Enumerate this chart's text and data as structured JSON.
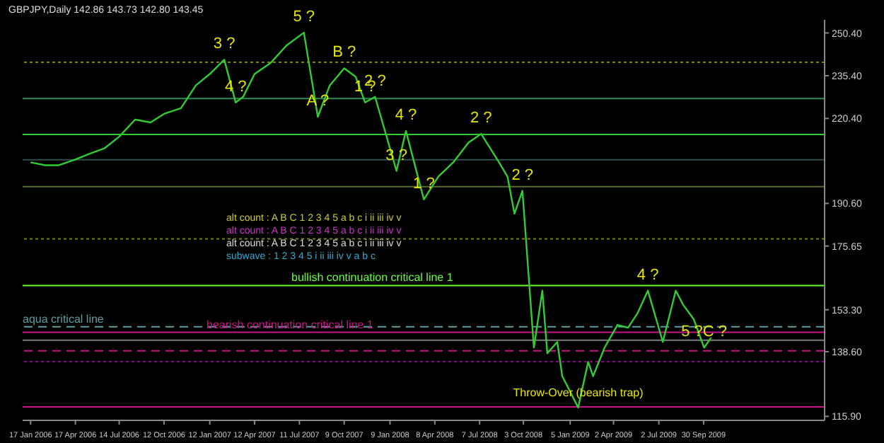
{
  "chart_data": {
    "type": "line",
    "title": "GBPJPY,Daily 142.86 143.73 142.80 143.45",
    "x": [
      "2006-01-17",
      "2006-02-15",
      "2006-03-15",
      "2006-04-17",
      "2006-05-15",
      "2006-06-15",
      "2006-07-14",
      "2006-08-15",
      "2006-09-15",
      "2006-10-12",
      "2006-11-15",
      "2006-12-15",
      "2007-01-12",
      "2007-02-10",
      "2007-03-05",
      "2007-03-20",
      "2007-04-12",
      "2007-05-15",
      "2007-06-15",
      "2007-07-20",
      "2007-08-17",
      "2007-09-10",
      "2007-10-09",
      "2007-11-01",
      "2007-11-20",
      "2007-12-10",
      "2008-01-22",
      "2008-02-10",
      "2008-03-17",
      "2008-04-15",
      "2008-05-15",
      "2008-06-15",
      "2008-07-10",
      "2008-08-15",
      "2008-09-01",
      "2008-09-15",
      "2008-10-01",
      "2008-10-24",
      "2008-11-10",
      "2008-11-20",
      "2008-12-10",
      "2008-12-20",
      "2009-01-21",
      "2009-02-10",
      "2009-02-20",
      "2009-03-15",
      "2009-04-10",
      "2009-05-01",
      "2009-05-20",
      "2009-06-10",
      "2009-07-10",
      "2009-08-05",
      "2009-08-20",
      "2009-09-10",
      "2009-10-01",
      "2009-10-15"
    ],
    "series": [
      {
        "color": "#33cc33",
        "values": [
          205,
          204,
          204,
          206,
          208,
          210,
          214,
          220,
          219,
          222,
          224,
          232,
          236,
          241,
          226,
          228,
          236,
          240,
          246,
          250.5,
          221,
          232,
          238,
          235,
          226,
          228,
          202,
          216,
          192,
          200,
          205,
          212,
          215,
          205,
          200,
          187,
          195,
          140,
          160,
          138,
          142,
          130,
          119,
          135,
          130,
          140,
          148,
          147,
          152,
          160,
          142,
          160,
          155,
          150,
          140,
          143.5
        ]
      }
    ],
    "xlim": [
      "2006-01-01",
      "2010-05-31"
    ],
    "xticks": [
      {
        "value": "2006-01-17",
        "label": "17 Jan 2006"
      },
      {
        "value": "2006-04-17",
        "label": "17 Apr 2006"
      },
      {
        "value": "2006-07-14",
        "label": "14 Jul 2006"
      },
      {
        "value": "2006-10-12",
        "label": "12 Oct 2006"
      },
      {
        "value": "2007-01-12",
        "label": "12 Jan 2007"
      },
      {
        "value": "2007-04-12",
        "label": "12 Apr 2007"
      },
      {
        "value": "2007-07-11",
        "label": "11 Jul 2007"
      },
      {
        "value": "2007-10-09",
        "label": "9 Oct 2007"
      },
      {
        "value": "2008-01-09",
        "label": "9 Jan 2008"
      },
      {
        "value": "2008-04-08",
        "label": "8 Apr 2008"
      },
      {
        "value": "2008-07-07",
        "label": "7 Jul 2008"
      },
      {
        "value": "2008-10-03",
        "label": "3 Oct 2008"
      },
      {
        "value": "2009-01-05",
        "label": "5 Jan 2009"
      },
      {
        "value": "2009-04-02",
        "label": "2 Apr 2009"
      },
      {
        "value": "2009-07-02",
        "label": "2 Jul 2009"
      },
      {
        "value": "2009-09-30",
        "label": "30 Sep 2009"
      }
    ],
    "ylim": [
      114.5,
      255
    ],
    "yticks": [
      {
        "value": 250.4,
        "label": "250.40"
      },
      {
        "value": 235.4,
        "label": "235.40"
      },
      {
        "value": 220.4,
        "label": "220.40"
      },
      {
        "value": 190.6,
        "label": "190.60"
      },
      {
        "value": 175.65,
        "label": "175.65"
      },
      {
        "value": 153.3,
        "label": "153.30"
      },
      {
        "value": 138.6,
        "label": "138.60"
      },
      {
        "value": 115.9,
        "label": "115.90"
      }
    ],
    "ref_lines": [
      {
        "axis": "y",
        "value": 240.1,
        "color": "#808000",
        "line_style": "dotted"
      },
      {
        "axis": "y",
        "value": 227.4,
        "color": "#2e8b57"
      },
      {
        "axis": "y",
        "value": 214.8,
        "color": "#32cd32"
      },
      {
        "axis": "y",
        "value": 205.9,
        "color": "#2f4f4f"
      },
      {
        "axis": "y",
        "value": 196.5,
        "color": "#556b2f"
      },
      {
        "axis": "y",
        "value": 178.2,
        "color": "#808000",
        "line_style": "dotted"
      },
      {
        "axis": "y",
        "value": 161.8,
        "color": "#66ff33",
        "label": "bullish continuation critical line 1"
      },
      {
        "axis": "y",
        "value": 147.3,
        "color": "#5f9ea0",
        "line_style": "dashed",
        "label": "aqua critical line"
      },
      {
        "axis": "y",
        "value": 145.4,
        "color": "#c71585",
        "label": "bearish continuation critical line 1"
      },
      {
        "axis": "y",
        "value": 142.6,
        "color": "#808080"
      },
      {
        "axis": "y",
        "value": 138.9,
        "color": "#c71585",
        "line_style": "dashed"
      },
      {
        "axis": "y",
        "value": 135.1,
        "color": "#8b008b",
        "line_style": "dotted"
      },
      {
        "axis": "y",
        "value": 119.2,
        "color": "#c71585"
      }
    ],
    "annotations": [
      "alt count : A B C 1 2 3 4 5 a b c i ii iii iv v",
      "alt count : A B C 1 2 3 4 5 a b c i ii iii iv v",
      "alt count : A B C 1 2 3 4 5 a b c i ii iii iv v",
      "subwave : 1 2 3 4 5 i ii iii iv v a b c",
      {
        "text": "5 ?",
        "x": "2007-07-20",
        "y": 250.5
      },
      {
        "text": "3 ?",
        "x": "2007-02-10",
        "y": 241
      },
      {
        "text": "4 ?",
        "x": "2007-03-05",
        "y": 226
      },
      {
        "text": "A ?",
        "x": "2007-08-17",
        "y": 221
      },
      {
        "text": "B ?",
        "x": "2007-10-09",
        "y": 238
      },
      {
        "text": "2 ?",
        "x": "2007-12-10",
        "y": 228
      },
      {
        "text": "1 ?",
        "x": "2007-11-20",
        "y": 226
      },
      {
        "text": "3 ?",
        "x": "2008-01-22",
        "y": 202
      },
      {
        "text": "4 ?",
        "x": "2008-02-10",
        "y": 216
      },
      {
        "text": "1 ?",
        "x": "2008-03-17",
        "y": 192
      },
      {
        "text": "2 ?",
        "x": "2008-07-10",
        "y": 215
      },
      {
        "text": "2 ?",
        "x": "2008-10-01",
        "y": 195
      },
      {
        "text": "4 ?",
        "x": "2009-06-10",
        "y": 160
      },
      {
        "text": "Throw-Over (bearish trap)",
        "x": "2009-01-21",
        "y": 119
      },
      {
        "text": "5 ?C ?",
        "x": "2009-10-01",
        "y": 140
      }
    ]
  }
}
